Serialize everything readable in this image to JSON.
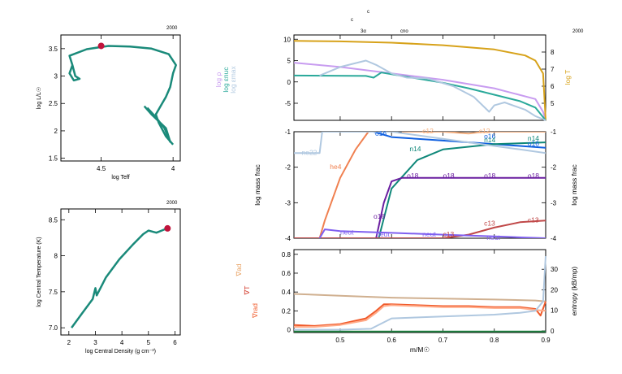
{
  "stamps": {
    "run_top_left": "2000",
    "run_top_right": "2000",
    "run_mid_left": "2000"
  },
  "annotations": {
    "top_center_1": "c",
    "top_center_2": "c",
    "burning_3a": "3α",
    "burning_cno": "cno"
  },
  "chart_data": [
    {
      "id": "hr",
      "type": "line",
      "xlabel": "log Teff",
      "ylabel": "log L/L☉",
      "xlim": [
        4.78,
        3.95
      ],
      "ylim": [
        1.45,
        3.75
      ],
      "xticks": [
        4.5,
        4
      ],
      "xticklabels": [
        "4.5",
        "4"
      ],
      "yticks": [
        1.5,
        2,
        2.5,
        3,
        3.5
      ],
      "yticklabels": [
        "1.5",
        "2",
        "2.5",
        "3",
        "3.5"
      ],
      "track_color": "#1a8a7a",
      "marker_color": "#c0143c",
      "track": [
        [
          4.0,
          1.75
        ],
        [
          4.05,
          1.9
        ],
        [
          4.1,
          2.15
        ],
        [
          4.12,
          2.3
        ],
        [
          4.05,
          2.62
        ],
        [
          4.02,
          2.8
        ],
        [
          4.0,
          3.05
        ],
        [
          3.98,
          3.2
        ],
        [
          4.03,
          3.4
        ],
        [
          4.15,
          3.5
        ],
        [
          4.3,
          3.54
        ],
        [
          4.45,
          3.55
        ],
        [
          4.6,
          3.49
        ],
        [
          4.72,
          3.37
        ],
        [
          4.7,
          3.2
        ],
        [
          4.68,
          3.0
        ],
        [
          4.65,
          2.95
        ],
        [
          4.69,
          2.92
        ],
        [
          4.72,
          3.05
        ],
        [
          4.7,
          3.2
        ]
      ],
      "track_inner": [
        [
          4.2,
          2.45
        ],
        [
          4.15,
          2.3
        ],
        [
          4.05,
          2.05
        ],
        [
          4.02,
          1.8
        ],
        [
          4.06,
          2.05
        ],
        [
          4.12,
          2.25
        ],
        [
          4.18,
          2.42
        ]
      ],
      "marker": [
        4.5,
        3.55
      ]
    },
    {
      "id": "central",
      "type": "line",
      "xlabel": "log Central Density (g cm⁻³)",
      "ylabel": "log Central Temperature (K)",
      "xlim": [
        1.7,
        6.2
      ],
      "ylim": [
        6.9,
        8.65
      ],
      "xticks": [
        2,
        3,
        4,
        5,
        6
      ],
      "xticklabels": [
        "2",
        "3",
        "4",
        "5",
        "6"
      ],
      "yticks": [
        7.0,
        7.5,
        8.0,
        8.5
      ],
      "yticklabels": [
        "7.0",
        "7.5",
        "8",
        "8.5"
      ],
      "track_color": "#1a8a7a",
      "marker_color": "#c0143c",
      "track": [
        [
          2.1,
          7.0
        ],
        [
          2.5,
          7.2
        ],
        [
          2.9,
          7.4
        ],
        [
          3.0,
          7.55
        ],
        [
          3.05,
          7.45
        ],
        [
          3.4,
          7.7
        ],
        [
          3.9,
          7.95
        ],
        [
          4.4,
          8.15
        ],
        [
          4.8,
          8.3
        ],
        [
          5.0,
          8.35
        ],
        [
          5.3,
          8.32
        ],
        [
          5.5,
          8.35
        ],
        [
          5.7,
          8.38
        ]
      ],
      "marker": [
        5.72,
        8.38
      ]
    },
    {
      "id": "profile_top",
      "type": "line",
      "xlim": [
        0.41,
        0.9
      ],
      "ylim": [
        -9,
        11
      ],
      "yticks": [
        -5,
        0,
        5,
        10
      ],
      "yticklabels": [
        "-5",
        "0",
        "5",
        "10"
      ],
      "ylim_right": [
        4,
        9
      ],
      "yticks_right": [
        5,
        6,
        7,
        8
      ],
      "yticklabels_right": [
        "5",
        "6",
        "7",
        "8"
      ],
      "ylabel_left": [
        "log ρ",
        "log εnuc",
        "log εmax"
      ],
      "ylabel_right": "log T",
      "series": [
        {
          "color": "#c89cf0",
          "x": [
            0.41,
            0.5,
            0.6,
            0.7,
            0.8,
            0.88,
            0.895,
            0.9
          ],
          "y": [
            4.5,
            3.5,
            2.0,
            0.5,
            -1.5,
            -4.0,
            -7.0,
            -9.0
          ]
        },
        {
          "color": "#d7a21a",
          "x": [
            0.41,
            0.5,
            0.6,
            0.7,
            0.8,
            0.86,
            0.88,
            0.895,
            0.9
          ],
          "y": [
            9.6,
            9.5,
            9.2,
            8.6,
            7.6,
            6.2,
            5.0,
            2.0,
            -9.0
          ]
        },
        {
          "color": "#2aa99a",
          "x": [
            0.41,
            0.55,
            0.565,
            0.58,
            0.6,
            0.65,
            0.7,
            0.75,
            0.8,
            0.85,
            0.88,
            0.9
          ],
          "y": [
            1.5,
            1.4,
            1.0,
            2.2,
            1.8,
            0.8,
            -0.2,
            -1.5,
            -3.0,
            -4.5,
            -6.0,
            -9.0
          ]
        },
        {
          "color": "#b0c8e0",
          "x": [
            0.46,
            0.5,
            0.55,
            0.57,
            0.6,
            0.63,
            0.67,
            0.72,
            0.76,
            0.79,
            0.8,
            0.82,
            0.86,
            0.88,
            0.9
          ],
          "y": [
            1.5,
            3.5,
            5.0,
            4.0,
            2.0,
            1.0,
            0.8,
            -1.0,
            -3.5,
            -7.0,
            -5.5,
            -4.8,
            -6.5,
            -8.0,
            -9.0
          ]
        }
      ]
    },
    {
      "id": "profile_mid",
      "type": "line",
      "xlim": [
        0.41,
        0.9
      ],
      "ylim": [
        -4,
        -1
      ],
      "yticks": [
        -4,
        -3,
        -2,
        -1
      ],
      "yticklabels": [
        "-4",
        "-3",
        "-2",
        "-1"
      ],
      "yticklabels_right": [
        "-4",
        "-3",
        "-2",
        "-1"
      ],
      "ylabel": "log mass frac",
      "series": [
        {
          "name": "he4",
          "color": "#f08050",
          "x": [
            0.41,
            0.46,
            0.47,
            0.5,
            0.53,
            0.555
          ],
          "y": [
            -4.0,
            -4.0,
            -3.5,
            -2.3,
            -1.5,
            -1.0
          ]
        },
        {
          "name": "o16",
          "color": "#1060e0",
          "x": [
            0.565,
            0.6,
            0.7,
            0.8,
            0.9
          ],
          "y": [
            -1.0,
            -1.15,
            -1.25,
            -1.35,
            -1.45
          ]
        },
        {
          "name": "n14",
          "color": "#10887a",
          "x": [
            0.575,
            0.6,
            0.65,
            0.7,
            0.8,
            0.9
          ],
          "y": [
            -4.0,
            -2.6,
            -1.8,
            -1.5,
            -1.35,
            -1.3
          ]
        },
        {
          "name": "o18",
          "color": "#6a1ea0",
          "x": [
            0.57,
            0.585,
            0.6,
            0.62,
            0.7,
            0.9
          ],
          "y": [
            -4.0,
            -3.0,
            -2.4,
            -2.3,
            -2.3,
            -2.3
          ]
        },
        {
          "name": "ne22",
          "color": "#b0c8e0",
          "x": [
            0.41,
            0.46,
            0.465,
            0.47,
            0.5,
            0.55,
            0.6,
            0.65,
            0.7,
            0.75,
            0.8,
            0.85,
            0.9
          ],
          "y": [
            -1.6,
            -1.6,
            -1.0,
            -1.0,
            -1.0,
            -1.0,
            -1.0,
            -1.1,
            -1.2,
            -1.3,
            -1.4,
            -1.5,
            -1.6
          ]
        },
        {
          "name": "c12",
          "color": "#f5b080",
          "x": [
            0.62,
            0.7,
            0.75,
            0.78,
            0.8,
            0.9
          ],
          "y": [
            -1.0,
            -1.0,
            -1.05,
            -1.0,
            -1.0,
            -1.0
          ]
        },
        {
          "name": "c13",
          "color": "#c04848",
          "x": [
            0.41,
            0.7,
            0.75,
            0.8,
            0.85,
            0.9
          ],
          "y": [
            -4.0,
            -4.0,
            -3.9,
            -3.7,
            -3.55,
            -3.5
          ]
        },
        {
          "name": "neut",
          "color": "#8060f0",
          "x": [
            0.46,
            0.47,
            0.5,
            0.6,
            0.7,
            0.8,
            0.9
          ],
          "y": [
            -4.0,
            -3.75,
            -3.8,
            -3.85,
            -3.9,
            -3.95,
            -4.0
          ]
        }
      ],
      "labels": [
        {
          "text": "ne22",
          "x": 0.425,
          "y": -1.65,
          "color": "#b0c8e0"
        },
        {
          "text": "he4",
          "x": 0.48,
          "y": -2.05,
          "color": "#f08050"
        },
        {
          "text": "o16",
          "x": 0.568,
          "y": -1.12,
          "color": "#1060e0"
        },
        {
          "text": "o16",
          "x": 0.78,
          "y": -1.2,
          "color": "#1060e0"
        },
        {
          "text": "o16",
          "x": 0.865,
          "y": -1.4,
          "color": "#1060e0"
        },
        {
          "text": "n14",
          "x": 0.635,
          "y": -1.55,
          "color": "#10887a"
        },
        {
          "text": "n14",
          "x": 0.78,
          "y": -1.3,
          "color": "#10887a"
        },
        {
          "text": "n14",
          "x": 0.865,
          "y": -1.25,
          "color": "#10887a"
        },
        {
          "text": "o18",
          "x": 0.565,
          "y": -3.45,
          "color": "#6a1ea0"
        },
        {
          "text": "o18",
          "x": 0.63,
          "y": -2.3,
          "color": "#6a1ea0"
        },
        {
          "text": "o18",
          "x": 0.7,
          "y": -2.3,
          "color": "#6a1ea0"
        },
        {
          "text": "o18",
          "x": 0.78,
          "y": -2.3,
          "color": "#6a1ea0"
        },
        {
          "text": "o18",
          "x": 0.865,
          "y": -2.3,
          "color": "#6a1ea0"
        },
        {
          "text": "c12",
          "x": 0.66,
          "y": -1.05,
          "color": "#f5b080"
        },
        {
          "text": "c12",
          "x": 0.77,
          "y": -1.05,
          "color": "#f5b080"
        },
        {
          "text": "c13",
          "x": 0.7,
          "y": -3.95,
          "color": "#c04848"
        },
        {
          "text": "c13",
          "x": 0.78,
          "y": -3.65,
          "color": "#c04848"
        },
        {
          "text": "c13",
          "x": 0.865,
          "y": -3.55,
          "color": "#c04848"
        },
        {
          "text": "neut",
          "x": 0.5,
          "y": -3.9,
          "color": "#8060f0"
        },
        {
          "text": "neut",
          "x": 0.57,
          "y": -3.95,
          "color": "#8060f0"
        },
        {
          "text": "neut",
          "x": 0.66,
          "y": -3.95,
          "color": "#8060f0"
        },
        {
          "text": "neut",
          "x": 0.785,
          "y": -4.05,
          "color": "#8060f0"
        }
      ]
    },
    {
      "id": "profile_bottom",
      "type": "line",
      "xlabel": "m/M☉",
      "xlim": [
        0.41,
        0.9
      ],
      "xticks": [
        0.5,
        0.6,
        0.7,
        0.8,
        0.9
      ],
      "xticklabels": [
        "0.5",
        "0.6",
        "0.7",
        "0.8",
        "0.9"
      ],
      "ylim": [
        -0.03,
        0.85
      ],
      "yticks": [
        0,
        0.2,
        0.4,
        0.6,
        0.8
      ],
      "yticklabels": [
        "0",
        "0.2",
        "0.4",
        "0.6",
        "0.8"
      ],
      "ylim_right": [
        0,
        38
      ],
      "yticks_right": [
        0,
        10,
        20,
        30
      ],
      "yticklabels_right": [
        "0",
        "10",
        "20",
        "30"
      ],
      "ylabel_left": [
        "∇ad",
        "∇T",
        "∇rad"
      ],
      "ylabel_right": "entropy (kB/mp)",
      "series": [
        {
          "name": "grad_ad",
          "color": "#d0b090",
          "x": [
            0.41,
            0.5,
            0.6,
            0.7,
            0.8,
            0.88,
            0.9
          ],
          "y": [
            0.38,
            0.36,
            0.34,
            0.33,
            0.32,
            0.31,
            0.3
          ]
        },
        {
          "name": "grad_rad",
          "color": "#f05a2a",
          "x": [
            0.41,
            0.45,
            0.5,
            0.55,
            0.57,
            0.585,
            0.6,
            0.65,
            0.7,
            0.75,
            0.8,
            0.85,
            0.88,
            0.89,
            0.9
          ],
          "y": [
            0.05,
            0.04,
            0.06,
            0.12,
            0.2,
            0.27,
            0.27,
            0.26,
            0.25,
            0.25,
            0.24,
            0.24,
            0.22,
            0.15,
            0.3
          ]
        },
        {
          "name": "grad_T",
          "color": "#ffaa88",
          "x": [
            0.41,
            0.45,
            0.5,
            0.55,
            0.57,
            0.585,
            0.6,
            0.65,
            0.7,
            0.75,
            0.8,
            0.85,
            0.88,
            0.9
          ],
          "y": [
            0.03,
            0.03,
            0.05,
            0.1,
            0.18,
            0.25,
            0.26,
            0.25,
            0.24,
            0.24,
            0.23,
            0.23,
            0.21,
            0.2
          ]
        },
        {
          "name": "entropy",
          "color": "#b0c8e0",
          "x": [
            0.41,
            0.5,
            0.56,
            0.6,
            0.7,
            0.8,
            0.85,
            0.88,
            0.895,
            0.9
          ],
          "y": [
            0.0,
            0.0,
            0.01,
            0.12,
            0.14,
            0.16,
            0.18,
            0.2,
            0.3,
            0.78
          ]
        },
        {
          "name": "flat",
          "color": "#208040",
          "x": [
            0.41,
            0.9
          ],
          "y": [
            -0.02,
            -0.02
          ]
        }
      ]
    }
  ]
}
